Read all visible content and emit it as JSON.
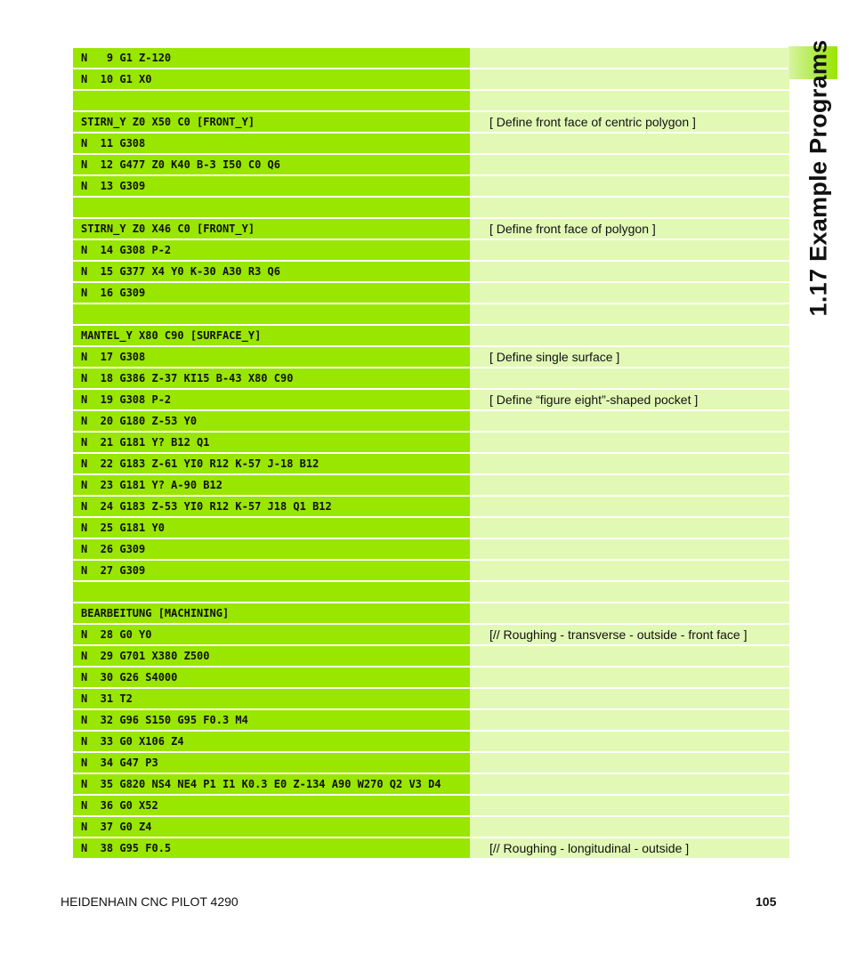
{
  "side_title": "1.17 Example Programs",
  "footer": {
    "product": "HEIDENHAIN CNC PILOT 4290",
    "page_number": "105"
  },
  "rows": [
    {
      "code": "N   9 G1 Z-120",
      "comment": ""
    },
    {
      "code": "N  10 G1 X0",
      "comment": ""
    },
    {
      "code": "",
      "comment": ""
    },
    {
      "code": "STIRN_Y Z0 X50 C0 [FRONT_Y]",
      "comment": "[ Define front face of centric polygon ]"
    },
    {
      "code": "N  11 G308",
      "comment": ""
    },
    {
      "code": "N  12 G477 Z0 K40 B-3 I50 C0 Q6",
      "comment": ""
    },
    {
      "code": "N  13 G309",
      "comment": ""
    },
    {
      "code": "",
      "comment": ""
    },
    {
      "code": "STIRN_Y Z0 X46 C0 [FRONT_Y]",
      "comment": "[ Define front face of polygon ]"
    },
    {
      "code": "N  14 G308 P-2",
      "comment": ""
    },
    {
      "code": "N  15 G377 X4 Y0 K-30 A30 R3 Q6",
      "comment": ""
    },
    {
      "code": "N  16 G309",
      "comment": ""
    },
    {
      "code": "",
      "comment": ""
    },
    {
      "code": "MANTEL_Y X80 C90 [SURFACE_Y]",
      "comment": ""
    },
    {
      "code": "N  17 G308",
      "comment": "[ Define single surface ]"
    },
    {
      "code": "N  18 G386 Z-37 KI15 B-43 X80 C90",
      "comment": ""
    },
    {
      "code": "N  19 G308 P-2",
      "comment": "[ Define “figure eight”-shaped pocket ]"
    },
    {
      "code": "N  20 G180 Z-53 Y0",
      "comment": ""
    },
    {
      "code": "N  21 G181 Y? B12 Q1",
      "comment": ""
    },
    {
      "code": "N  22 G183 Z-61 YI0 R12 K-57 J-18 B12",
      "comment": ""
    },
    {
      "code": "N  23 G181 Y? A-90 B12",
      "comment": ""
    },
    {
      "code": "N  24 G183 Z-53 YI0 R12 K-57 J18 Q1 B12",
      "comment": ""
    },
    {
      "code": "N  25 G181 Y0",
      "comment": ""
    },
    {
      "code": "N  26 G309",
      "comment": ""
    },
    {
      "code": "N  27 G309",
      "comment": ""
    },
    {
      "code": "",
      "comment": ""
    },
    {
      "code": "BEARBEITUNG [MACHINING]",
      "comment": ""
    },
    {
      "code": "N  28 G0 Y0",
      "comment": "[// Roughing - transverse - outside - front face ]"
    },
    {
      "code": "N  29 G701 X380 Z500",
      "comment": ""
    },
    {
      "code": "N  30 G26 S4000",
      "comment": ""
    },
    {
      "code": "N  31 T2",
      "comment": ""
    },
    {
      "code": "N  32 G96 S150 G95 F0.3 M4",
      "comment": ""
    },
    {
      "code": "N  33 G0 X106 Z4",
      "comment": ""
    },
    {
      "code": "N  34 G47 P3",
      "comment": ""
    },
    {
      "code": "N  35 G820 NS4 NE4 P1 I1 K0.3 E0 Z-134 A90 W270 Q2 V3 D4",
      "comment": ""
    },
    {
      "code": "N  36 G0 X52",
      "comment": ""
    },
    {
      "code": "N  37 G0 Z4",
      "comment": ""
    },
    {
      "code": "N  38 G95 F0.5",
      "comment": "[// Roughing - longitudinal - outside ]"
    }
  ]
}
